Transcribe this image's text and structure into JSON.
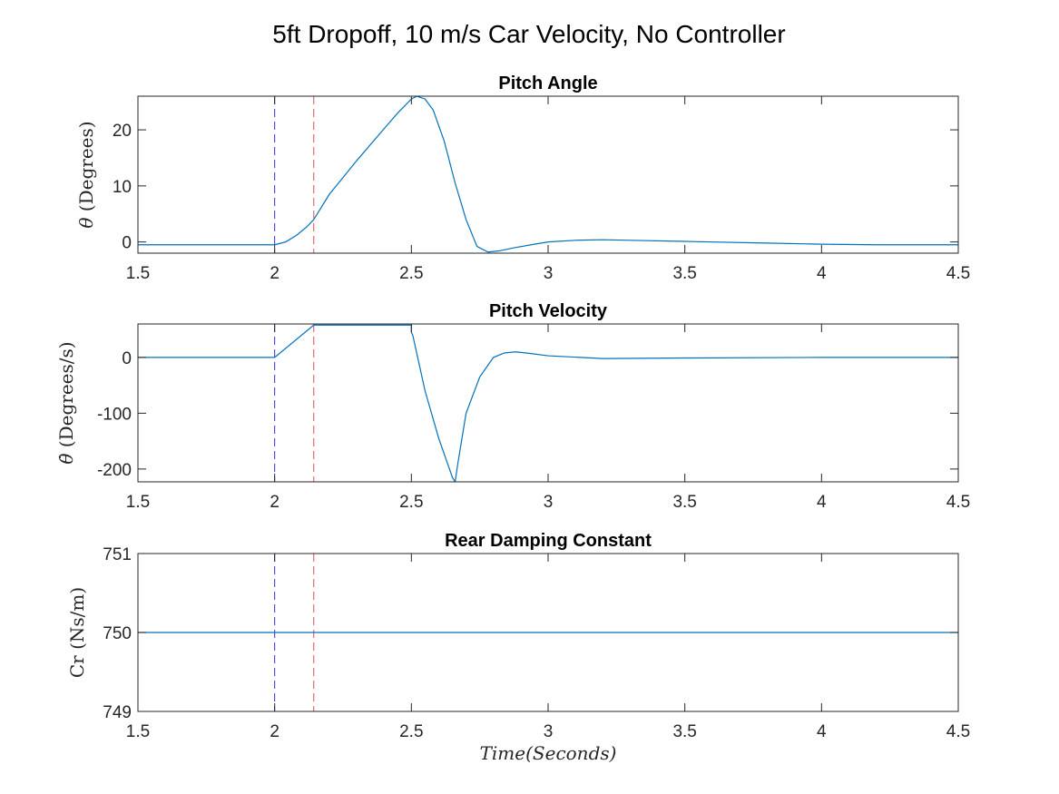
{
  "figure": {
    "title": "5ft Dropoff,   10 m/s Car Velocity, No Controller",
    "xlabel": "Time(Seconds)"
  },
  "colors": {
    "series": "#0072BD",
    "marker_blue": "#3030c8",
    "marker_red": "#e05050",
    "axis": "#262626"
  },
  "chart_data": [
    {
      "type": "line",
      "title": "Pitch Angle",
      "ylabel_symbol": "θ",
      "ylabel": "(Degrees)",
      "xlim": [
        1.5,
        4.5
      ],
      "ylim": [
        -2,
        26
      ],
      "xticks": [
        1.5,
        2,
        2.5,
        3,
        3.5,
        4,
        4.5
      ],
      "xtick_labels": [
        "1.5",
        "2",
        "2.5",
        "3",
        "3.5",
        "4",
        "4.5"
      ],
      "yticks": [
        0,
        10,
        20
      ],
      "ytick_labels": [
        "0",
        "10",
        "20"
      ],
      "vlines": [
        {
          "x": 2.0,
          "color": "#3030c8"
        },
        {
          "x": 2.143,
          "color": "#e05050"
        }
      ],
      "series": [
        {
          "x": [
            1.5,
            1.9,
            2.0,
            2.04,
            2.08,
            2.12,
            2.143,
            2.2,
            2.3,
            2.4,
            2.45,
            2.5,
            2.52,
            2.55,
            2.58,
            2.62,
            2.66,
            2.7,
            2.74,
            2.78,
            2.82,
            2.88,
            2.95,
            3.0,
            3.1,
            3.2,
            3.3,
            3.5,
            3.8,
            4.0,
            4.2,
            4.5
          ],
          "y": [
            -0.5,
            -0.5,
            -0.5,
            0.0,
            1.2,
            2.8,
            4.0,
            8.5,
            14.5,
            20.2,
            23.0,
            25.5,
            26.0,
            25.5,
            23.5,
            18.0,
            10.5,
            4.0,
            -0.8,
            -1.8,
            -1.6,
            -1.0,
            -0.4,
            0.0,
            0.3,
            0.4,
            0.3,
            0.1,
            -0.2,
            -0.4,
            -0.5,
            -0.5
          ]
        }
      ]
    },
    {
      "type": "line",
      "title": "Pitch Velocity",
      "ylabel_symbol": "θ̇",
      "ylabel": "(Degrees/s)",
      "xlim": [
        1.5,
        4.5
      ],
      "ylim": [
        -223,
        60
      ],
      "xticks": [
        1.5,
        2,
        2.5,
        3,
        3.5,
        4,
        4.5
      ],
      "xtick_labels": [
        "1.5",
        "2",
        "2.5",
        "3",
        "3.5",
        "4",
        "4.5"
      ],
      "yticks": [
        -200,
        -100,
        0
      ],
      "ytick_labels": [
        "-200",
        "-100",
        "0"
      ],
      "vlines": [
        {
          "x": 2.0,
          "color": "#3030c8"
        },
        {
          "x": 2.143,
          "color": "#e05050"
        }
      ],
      "series": [
        {
          "x": [
            1.5,
            2.0,
            2.143,
            2.5,
            2.5,
            2.505,
            2.55,
            2.6,
            2.65,
            2.66,
            2.67,
            2.7,
            2.75,
            2.8,
            2.84,
            2.88,
            2.92,
            3.0,
            3.2,
            3.5,
            4.0,
            4.5
          ],
          "y": [
            0,
            0,
            58,
            58,
            45,
            40,
            -60,
            -145,
            -215,
            -223,
            -190,
            -100,
            -35,
            0,
            8,
            10,
            8,
            3,
            -2,
            -1,
            0,
            0
          ]
        }
      ]
    },
    {
      "type": "line",
      "title": "Rear Damping Constant",
      "ylabel": "Cr (Ns/m)",
      "xlim": [
        1.5,
        4.5
      ],
      "ylim": [
        749,
        751
      ],
      "xticks": [
        1.5,
        2,
        2.5,
        3,
        3.5,
        4,
        4.5
      ],
      "xtick_labels": [
        "1.5",
        "2",
        "2.5",
        "3",
        "3.5",
        "4",
        "4.5"
      ],
      "yticks": [
        749,
        750,
        751
      ],
      "ytick_labels": [
        "749",
        "750",
        "751"
      ],
      "vlines": [
        {
          "x": 2.0,
          "color": "#3030c8"
        },
        {
          "x": 2.143,
          "color": "#e05050"
        }
      ],
      "series": [
        {
          "x": [
            1.5,
            4.5
          ],
          "y": [
            750,
            750
          ]
        }
      ]
    }
  ]
}
